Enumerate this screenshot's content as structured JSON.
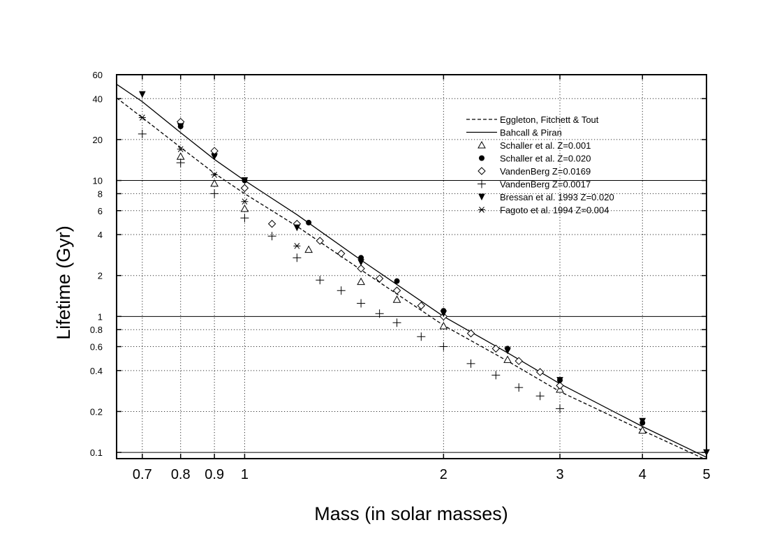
{
  "chart_data": {
    "type": "scatter",
    "title": "",
    "xlabel": "Mass (in solar masses)",
    "ylabel": "Lifetime (Gyr)",
    "xscale": "log",
    "yscale": "log",
    "xlim": [
      0.64,
      5.0
    ],
    "ylim": [
      0.09,
      60
    ],
    "grid": true,
    "legend_position": "top-right",
    "x_ticks": [
      {
        "value": 0.7,
        "label": "0.7"
      },
      {
        "value": 0.8,
        "label": "0.8"
      },
      {
        "value": 0.9,
        "label": "0.9"
      },
      {
        "value": 1,
        "label": "1"
      },
      {
        "value": 2,
        "label": "2"
      },
      {
        "value": 3,
        "label": "3"
      },
      {
        "value": 4,
        "label": "4"
      },
      {
        "value": 5,
        "label": "5"
      }
    ],
    "y_ticks": [
      {
        "value": 0.1,
        "label": "0.1"
      },
      {
        "value": 0.2,
        "label": "0.2"
      },
      {
        "value": 0.4,
        "label": "0.4"
      },
      {
        "value": 0.6,
        "label": "0.6"
      },
      {
        "value": 0.8,
        "label": "0.8"
      },
      {
        "value": 1,
        "label": "1"
      },
      {
        "value": 2,
        "label": "2"
      },
      {
        "value": 4,
        "label": "4"
      },
      {
        "value": 6,
        "label": "6"
      },
      {
        "value": 8,
        "label": "8"
      },
      {
        "value": 10,
        "label": "10"
      },
      {
        "value": 20,
        "label": "20"
      },
      {
        "value": 40,
        "label": "40"
      },
      {
        "value": 60,
        "label": "60"
      }
    ],
    "x_grid": [
      0.7,
      0.8,
      0.9,
      1,
      2,
      3,
      4
    ],
    "y_grid": [
      0.2,
      0.4,
      0.6,
      0.8,
      2,
      4,
      6,
      8,
      20,
      40,
      60
    ],
    "y_solid_lines": [
      0.1,
      1,
      10
    ],
    "series": [
      {
        "name": "Eggleton, Fitchett & Tout",
        "kind": "line",
        "style": "dashed",
        "x": [
          0.64,
          0.7,
          0.8,
          0.9,
          1.0,
          1.2,
          1.5,
          2.0,
          2.5,
          3.0,
          4.0,
          5.0
        ],
        "y": [
          40.5,
          29.0,
          17.5,
          11.3,
          8.0,
          4.6,
          2.2,
          0.86,
          0.47,
          0.28,
          0.145,
          0.088
        ]
      },
      {
        "name": "Bahcall & Piran",
        "kind": "line",
        "style": "solid",
        "x": [
          0.64,
          0.7,
          0.8,
          0.9,
          1.0,
          1.2,
          1.5,
          2.0,
          2.5,
          3.0,
          4.0,
          5.0
        ],
        "y": [
          51.0,
          38.0,
          22.5,
          14.3,
          10.0,
          5.6,
          2.6,
          1.0,
          0.54,
          0.32,
          0.155,
          0.092
        ]
      },
      {
        "name": "Schaller et al. Z=0.001",
        "kind": "scatter",
        "marker": "triangle-open",
        "x": [
          0.8,
          0.9,
          1.0,
          1.25,
          1.5,
          1.7,
          2.0,
          2.5,
          3.0,
          4.0
        ],
        "y": [
          15.0,
          9.5,
          6.2,
          3.1,
          1.8,
          1.33,
          0.85,
          0.48,
          0.29,
          0.145
        ]
      },
      {
        "name": "Schaller et al. Z=0.020",
        "kind": "scatter",
        "marker": "circle-filled",
        "x": [
          0.8,
          0.9,
          1.0,
          1.25,
          1.5,
          1.7,
          2.0,
          2.5,
          3.0,
          4.0
        ],
        "y": [
          25.0,
          15.5,
          10.0,
          4.9,
          2.7,
          1.82,
          1.1,
          0.58,
          0.34,
          0.165
        ]
      },
      {
        "name": "VandenBerg Z=0.0169",
        "kind": "scatter",
        "marker": "diamond-open",
        "x": [
          0.8,
          0.9,
          1.0,
          1.1,
          1.2,
          1.3,
          1.4,
          1.5,
          1.6,
          1.7,
          1.85,
          2.0,
          2.2,
          2.4,
          2.6,
          2.8,
          3.0
        ],
        "y": [
          27.0,
          16.5,
          8.8,
          4.8,
          4.8,
          3.6,
          2.9,
          2.25,
          1.9,
          1.55,
          1.2,
          1.0,
          0.75,
          0.58,
          0.47,
          0.39,
          0.31
        ]
      },
      {
        "name": "VandenBerg Z=0.0017",
        "kind": "scatter",
        "marker": "plus",
        "x": [
          0.7,
          0.8,
          0.9,
          1.0,
          1.1,
          1.2,
          1.3,
          1.4,
          1.5,
          1.6,
          1.7,
          1.85,
          2.0,
          2.2,
          2.4,
          2.6,
          2.8,
          3.0
        ],
        "y": [
          22.0,
          13.5,
          8.0,
          5.3,
          3.9,
          2.7,
          1.85,
          1.55,
          1.25,
          1.05,
          0.9,
          0.71,
          0.6,
          0.45,
          0.37,
          0.3,
          0.26,
          0.21
        ]
      },
      {
        "name": "Bressan et al. 1993 Z=0.020",
        "kind": "scatter",
        "marker": "triangle-down-filled",
        "x": [
          0.7,
          0.8,
          0.9,
          1.0,
          1.2,
          1.5,
          2.0,
          2.5,
          3.0,
          4.0,
          5.0
        ],
        "y": [
          43.0,
          25.0,
          15.0,
          10.0,
          4.5,
          2.5,
          1.05,
          0.56,
          0.34,
          0.17,
          0.1
        ]
      },
      {
        "name": "Fagoto et al. 1994 Z=0.004",
        "kind": "scatter",
        "marker": "asterisk",
        "x": [
          0.7,
          0.8,
          0.9,
          1.0,
          1.2
        ],
        "y": [
          29.0,
          17.0,
          11.0,
          7.0,
          3.3
        ]
      }
    ]
  }
}
